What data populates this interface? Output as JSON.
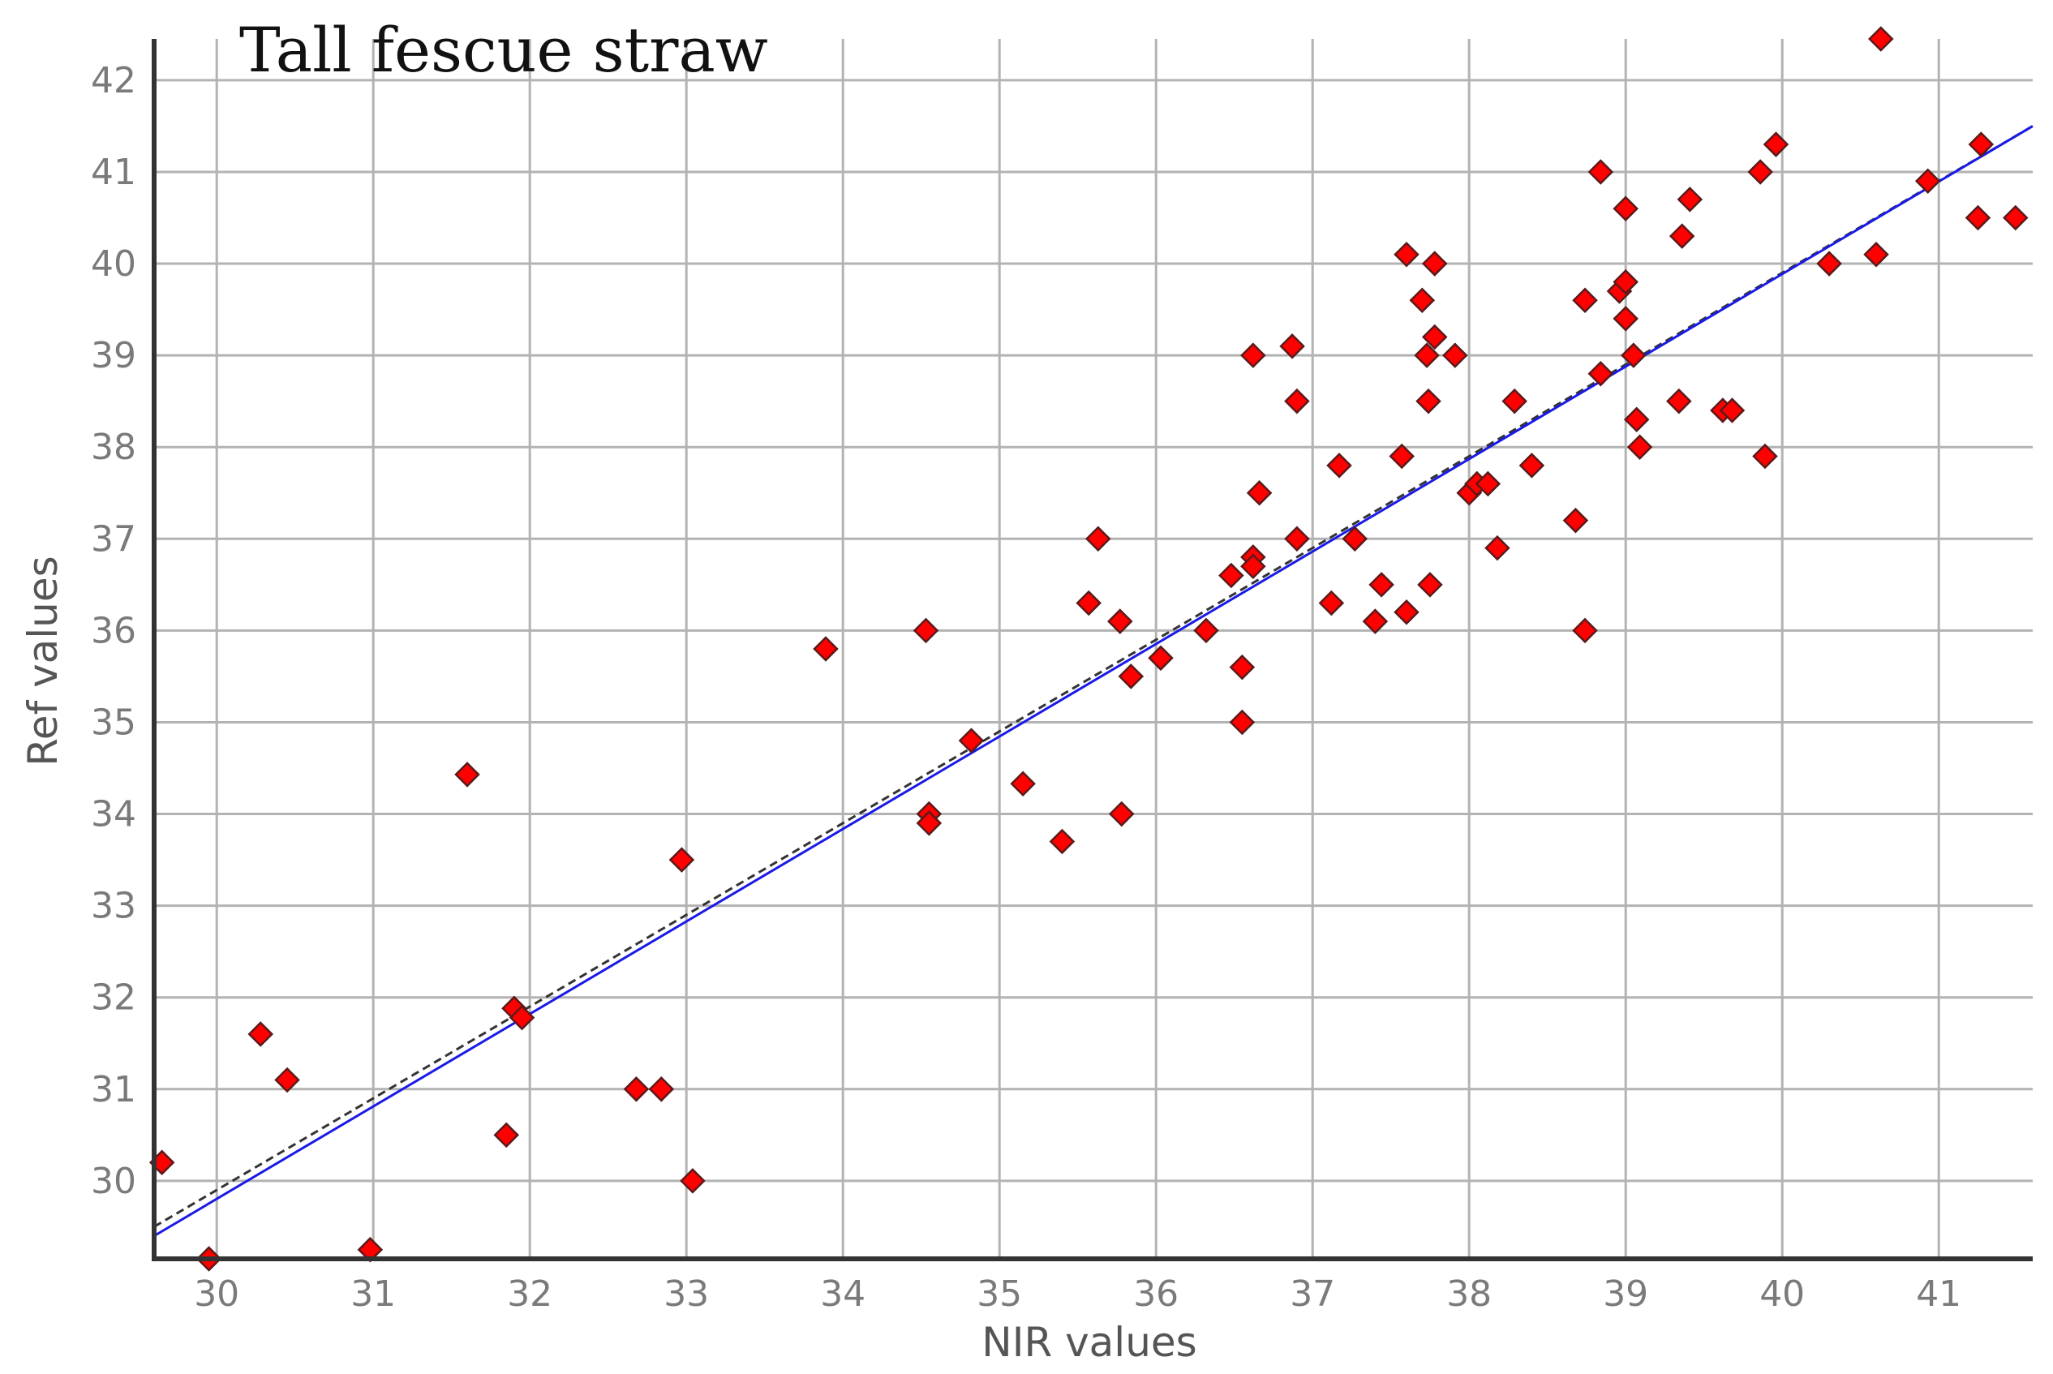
{
  "chart_data": {
    "type": "scatter",
    "title": "Tall fescue straw",
    "xlabel": "NIR values",
    "ylabel": "Ref values",
    "xlim": [
      29.6,
      41.6
    ],
    "ylim": [
      29.15,
      42.45
    ],
    "xticks": [
      30,
      31,
      32,
      33,
      34,
      35,
      36,
      37,
      38,
      39,
      40,
      41
    ],
    "yticks": [
      30,
      31,
      32,
      33,
      34,
      35,
      36,
      37,
      38,
      39,
      40,
      41,
      42
    ],
    "grid": true,
    "colors": {
      "marker_fill": "#ff0000",
      "marker_edge": "#5a1a1a",
      "regression_line": "#1a1ae6",
      "reference_line": "#333333",
      "grid": "#b3b3b3",
      "axis": "#333333"
    },
    "lines": [
      {
        "name": "regression",
        "style": "solid",
        "color": "#1a1ae6",
        "x": [
          29.6,
          41.6
        ],
        "y": [
          29.4,
          41.5
        ]
      },
      {
        "name": "reference",
        "style": "dashed",
        "color": "#333333",
        "x": [
          29.6,
          41.6
        ],
        "y": [
          29.5,
          41.5
        ]
      }
    ],
    "series": [
      {
        "name": "samples",
        "marker": "diamond",
        "points": [
          [
            29.65,
            30.2
          ],
          [
            29.95,
            29.15
          ],
          [
            30.28,
            31.6
          ],
          [
            30.45,
            31.1
          ],
          [
            30.98,
            29.25
          ],
          [
            31.6,
            34.43
          ],
          [
            31.85,
            30.5
          ],
          [
            31.9,
            31.88
          ],
          [
            31.95,
            31.78
          ],
          [
            32.68,
            31.0
          ],
          [
            32.84,
            31.0
          ],
          [
            32.97,
            33.5
          ],
          [
            33.04,
            30.0
          ],
          [
            33.89,
            35.8
          ],
          [
            34.53,
            36.0
          ],
          [
            34.55,
            34.0
          ],
          [
            34.55,
            33.9
          ],
          [
            34.82,
            34.8
          ],
          [
            35.15,
            34.33
          ],
          [
            35.4,
            33.7
          ],
          [
            35.57,
            36.3
          ],
          [
            35.63,
            37.0
          ],
          [
            35.77,
            36.1
          ],
          [
            35.78,
            34.0
          ],
          [
            35.84,
            35.5
          ],
          [
            36.03,
            35.7
          ],
          [
            36.32,
            36.0
          ],
          [
            36.48,
            36.6
          ],
          [
            36.55,
            35.6
          ],
          [
            36.55,
            35.0
          ],
          [
            36.62,
            36.8
          ],
          [
            36.62,
            36.7
          ],
          [
            36.62,
            39.0
          ],
          [
            36.66,
            37.5
          ],
          [
            36.87,
            39.1
          ],
          [
            36.9,
            38.5
          ],
          [
            36.9,
            37.0
          ],
          [
            37.12,
            36.3
          ],
          [
            37.17,
            37.8
          ],
          [
            37.27,
            37.0
          ],
          [
            37.4,
            36.1
          ],
          [
            37.44,
            36.5
          ],
          [
            37.57,
            37.9
          ],
          [
            37.6,
            36.2
          ],
          [
            37.6,
            40.1
          ],
          [
            37.7,
            39.6
          ],
          [
            37.73,
            39.0
          ],
          [
            37.74,
            38.5
          ],
          [
            37.75,
            36.5
          ],
          [
            37.78,
            40.0
          ],
          [
            37.78,
            39.2
          ],
          [
            37.91,
            39.0
          ],
          [
            38.0,
            37.5
          ],
          [
            38.05,
            37.6
          ],
          [
            38.12,
            37.6
          ],
          [
            38.18,
            36.9
          ],
          [
            38.29,
            38.5
          ],
          [
            38.4,
            37.8
          ],
          [
            38.68,
            37.2
          ],
          [
            38.74,
            39.6
          ],
          [
            38.74,
            36.0
          ],
          [
            38.84,
            41.0
          ],
          [
            38.84,
            38.8
          ],
          [
            38.96,
            39.7
          ],
          [
            39.0,
            40.6
          ],
          [
            39.0,
            39.8
          ],
          [
            39.0,
            39.4
          ],
          [
            39.05,
            39.0
          ],
          [
            39.07,
            38.3
          ],
          [
            39.09,
            38.0
          ],
          [
            39.34,
            38.5
          ],
          [
            39.36,
            40.3
          ],
          [
            39.41,
            40.7
          ],
          [
            39.62,
            38.4
          ],
          [
            39.68,
            38.4
          ],
          [
            39.86,
            41.0
          ],
          [
            39.89,
            37.9
          ],
          [
            39.96,
            41.3
          ],
          [
            40.3,
            40.0
          ],
          [
            40.6,
            40.1
          ],
          [
            40.63,
            42.45
          ],
          [
            40.93,
            40.9
          ],
          [
            41.25,
            40.5
          ],
          [
            41.27,
            41.3
          ],
          [
            41.49,
            40.5
          ]
        ]
      }
    ]
  }
}
